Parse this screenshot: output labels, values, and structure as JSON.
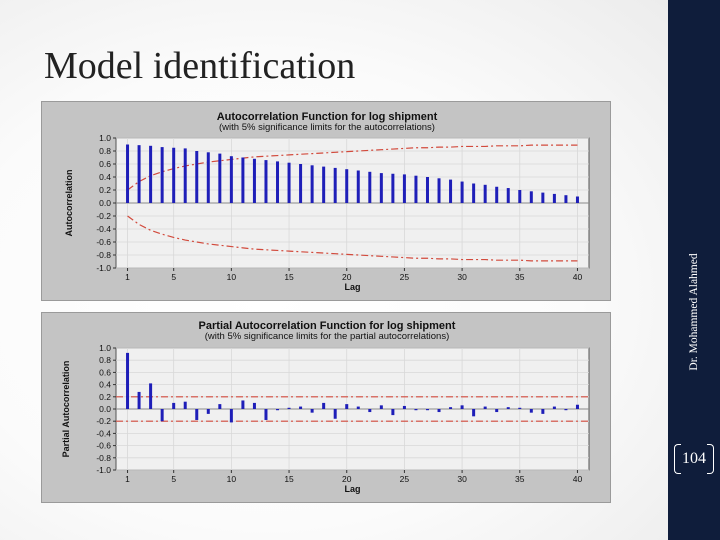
{
  "slide": {
    "title": "Model identification",
    "side_label": "Dr. Mohammed Alahmed",
    "page_number": "104",
    "colors": {
      "sidebar": "#0f1d3b",
      "bar": "#1e1eb8",
      "limit": "#d24a3c",
      "plot_bg": "#f0f0f0",
      "frame_bg": "#c4c4c4"
    }
  },
  "chart_data": [
    {
      "type": "bar",
      "title": "Autocorrelation Function for log shipment",
      "subtitle": "(with 5% significance limits for the autocorrelations)",
      "xlabel": "Lag",
      "ylabel": "Autocorrelation",
      "xlim": [
        0,
        41
      ],
      "ylim": [
        -1.0,
        1.0
      ],
      "x_ticks": [
        1,
        5,
        10,
        15,
        20,
        25,
        30,
        35,
        40
      ],
      "x_tick_labels": [
        "1",
        "5",
        "10",
        "15",
        "20",
        "25",
        "30",
        "35",
        "40"
      ],
      "y_ticks": [
        1.0,
        0.8,
        0.6,
        0.4,
        0.2,
        0.0,
        -0.2,
        -0.4,
        -0.6,
        -0.8,
        -1.0
      ],
      "y_tick_labels": [
        "1.0",
        "0.8",
        "0.6",
        "0.4",
        "0.2",
        "0.0",
        "-0.2",
        "-0.4",
        "-0.6",
        "-0.8",
        "-1.0"
      ],
      "grid": true,
      "lags": [
        1,
        2,
        3,
        4,
        5,
        6,
        7,
        8,
        9,
        10,
        11,
        12,
        13,
        14,
        15,
        16,
        17,
        18,
        19,
        20,
        21,
        22,
        23,
        24,
        25,
        26,
        27,
        28,
        29,
        30,
        31,
        32,
        33,
        34,
        35,
        36,
        37,
        38,
        39,
        40
      ],
      "values": [
        0.9,
        0.89,
        0.88,
        0.86,
        0.85,
        0.84,
        0.8,
        0.78,
        0.76,
        0.72,
        0.7,
        0.68,
        0.66,
        0.64,
        0.62,
        0.6,
        0.58,
        0.56,
        0.54,
        0.52,
        0.5,
        0.48,
        0.46,
        0.45,
        0.44,
        0.42,
        0.4,
        0.38,
        0.36,
        0.33,
        0.3,
        0.28,
        0.25,
        0.23,
        0.2,
        0.18,
        0.16,
        0.14,
        0.12,
        0.1
      ],
      "limit_upper": [
        0.2,
        0.33,
        0.42,
        0.48,
        0.53,
        0.57,
        0.6,
        0.63,
        0.65,
        0.67,
        0.69,
        0.71,
        0.72,
        0.73,
        0.74,
        0.75,
        0.76,
        0.77,
        0.78,
        0.79,
        0.8,
        0.81,
        0.82,
        0.83,
        0.84,
        0.85,
        0.85,
        0.86,
        0.86,
        0.87,
        0.87,
        0.87,
        0.88,
        0.88,
        0.88,
        0.89,
        0.89,
        0.89,
        0.89,
        0.89
      ],
      "limit_lower": [
        -0.2,
        -0.33,
        -0.42,
        -0.48,
        -0.53,
        -0.57,
        -0.6,
        -0.63,
        -0.65,
        -0.67,
        -0.69,
        -0.71,
        -0.72,
        -0.73,
        -0.74,
        -0.75,
        -0.76,
        -0.77,
        -0.78,
        -0.79,
        -0.8,
        -0.81,
        -0.82,
        -0.83,
        -0.84,
        -0.85,
        -0.85,
        -0.86,
        -0.86,
        -0.87,
        -0.87,
        -0.87,
        -0.88,
        -0.88,
        -0.88,
        -0.89,
        -0.89,
        -0.89,
        -0.89,
        -0.89
      ]
    },
    {
      "type": "bar",
      "title": "Partial Autocorrelation Function for log shipment",
      "subtitle": "(with 5% significance limits for the partial autocorrelations)",
      "xlabel": "Lag",
      "ylabel": "Partial Autocorrelation",
      "xlim": [
        0,
        41
      ],
      "ylim": [
        -1.0,
        1.0
      ],
      "x_ticks": [
        1,
        5,
        10,
        15,
        20,
        25,
        30,
        35,
        40
      ],
      "x_tick_labels": [
        "1",
        "5",
        "10",
        "15",
        "20",
        "25",
        "30",
        "35",
        "40"
      ],
      "y_ticks": [
        1.0,
        0.8,
        0.6,
        0.4,
        0.2,
        0.0,
        -0.2,
        -0.4,
        -0.6,
        -0.8,
        -1.0
      ],
      "y_tick_labels": [
        "1.0",
        "0.8",
        "0.6",
        "0.4",
        "0.2",
        "0.0",
        "-0.2",
        "-0.4",
        "-0.6",
        "-0.8",
        "-1.0"
      ],
      "grid": true,
      "lags": [
        1,
        2,
        3,
        4,
        5,
        6,
        7,
        8,
        9,
        10,
        11,
        12,
        13,
        14,
        15,
        16,
        17,
        18,
        19,
        20,
        21,
        22,
        23,
        24,
        25,
        26,
        27,
        28,
        29,
        30,
        31,
        32,
        33,
        34,
        35,
        36,
        37,
        38,
        39,
        40
      ],
      "values": [
        0.92,
        0.28,
        0.42,
        -0.2,
        0.1,
        0.12,
        -0.18,
        -0.08,
        0.08,
        -0.22,
        0.14,
        0.1,
        -0.18,
        -0.02,
        0.02,
        0.04,
        -0.06,
        0.1,
        -0.16,
        0.08,
        0.04,
        -0.05,
        0.06,
        -0.1,
        0.05,
        -0.02,
        0.0,
        -0.05,
        0.03,
        0.06,
        -0.12,
        0.04,
        -0.05,
        0.03,
        0.02,
        -0.06,
        -0.08,
        0.04,
        0.0,
        0.07
      ],
      "limit_upper": 0.2,
      "limit_lower": -0.2
    }
  ]
}
